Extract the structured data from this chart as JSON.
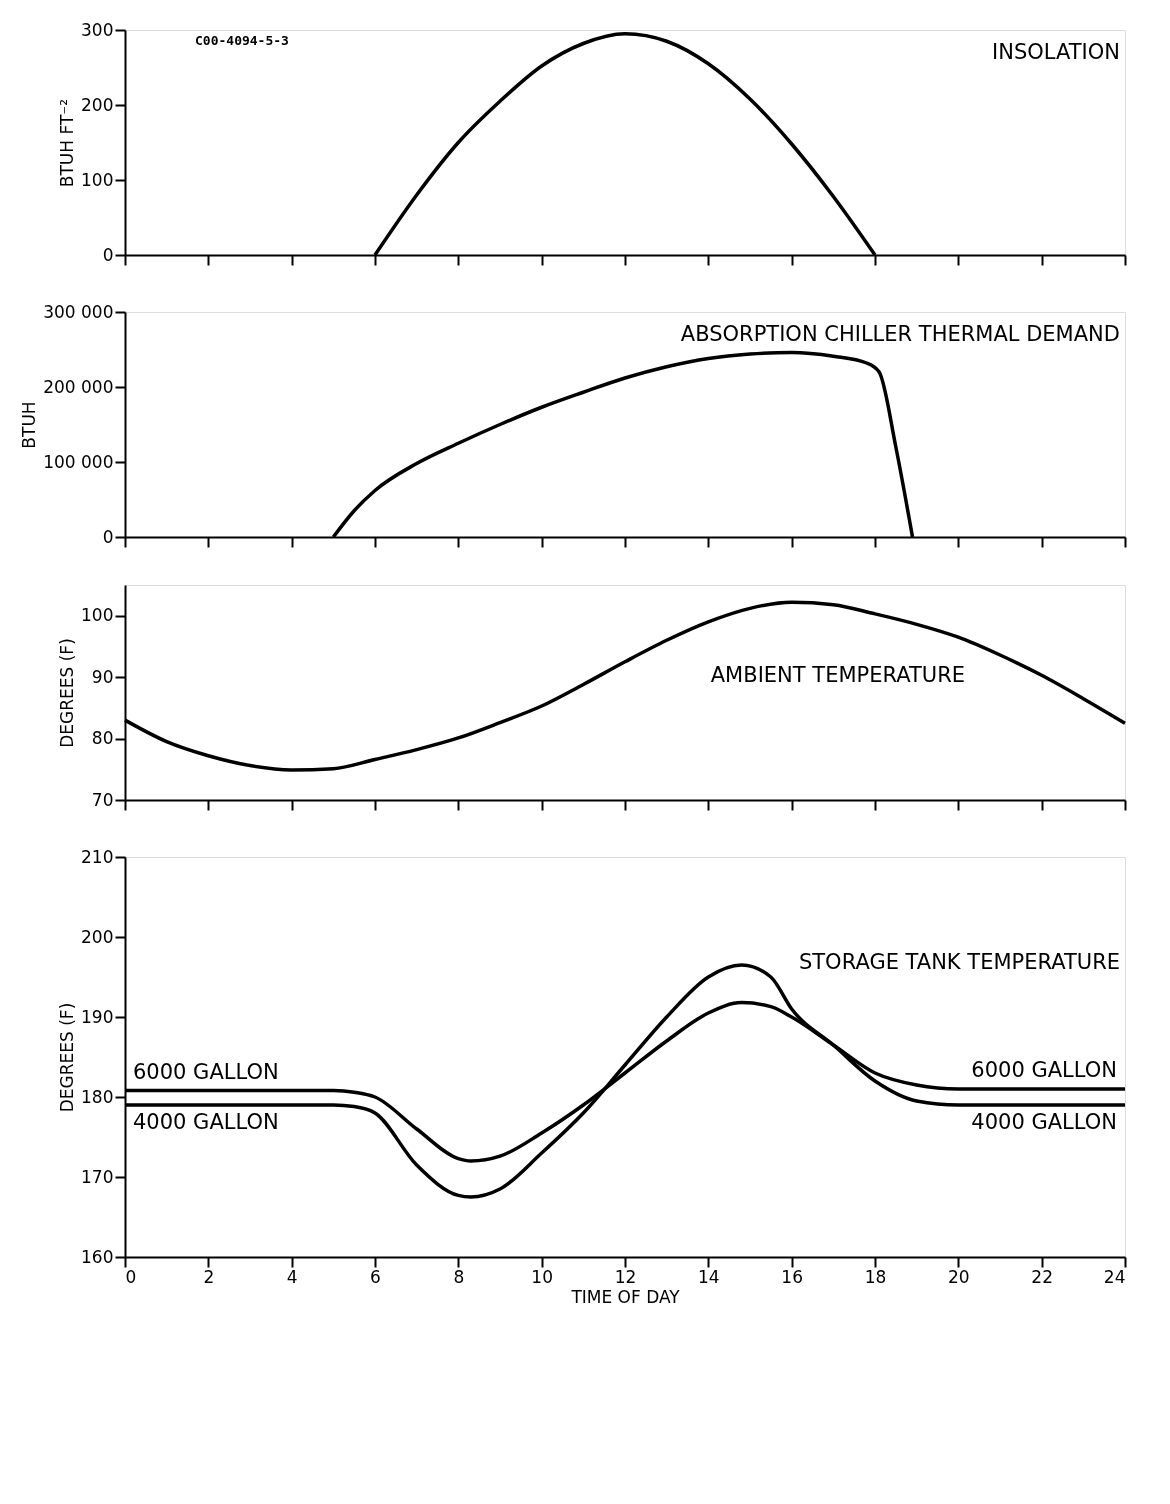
{
  "chart_data": [
    {
      "type": "line",
      "title": "INSOLATION",
      "ylabel": "BTUH FT⁻²",
      "tick_labels": "y",
      "color": "#000000",
      "xlim": [
        0,
        24
      ],
      "xticks": [
        0,
        2,
        4,
        6,
        8,
        10,
        12,
        14,
        16,
        18,
        20,
        22,
        24
      ],
      "ylim": [
        0,
        300
      ],
      "yticks": [
        0,
        100,
        200,
        300
      ],
      "x": [
        6,
        7,
        8,
        9,
        10,
        11,
        12,
        13,
        14,
        15,
        16,
        17,
        18
      ],
      "values": [
        0,
        80,
        150,
        205,
        252,
        282,
        295,
        285,
        255,
        208,
        148,
        78,
        0
      ],
      "annotations": [
        "C00-4094-5-3"
      ]
    },
    {
      "type": "line",
      "title": "ABSORPTION CHILLER THERMAL DEMAND",
      "ylabel": "BTUH",
      "tick_labels": "y",
      "color": "#000000",
      "xlim": [
        0,
        24
      ],
      "xticks": [
        0,
        2,
        4,
        6,
        8,
        10,
        12,
        14,
        16,
        18,
        20,
        22,
        24
      ],
      "ylim": [
        0,
        300000
      ],
      "yticks": [
        0,
        {
          "value": 100000,
          "label": "100 000"
        },
        {
          "value": 200000,
          "label": "200 000"
        },
        {
          "value": 300000,
          "label": "300 000"
        }
      ],
      "x": [
        5,
        5.5,
        6,
        7,
        8,
        9,
        10,
        11,
        12,
        13,
        14,
        15,
        16,
        17,
        17.8,
        18.1,
        18.5,
        18.9
      ],
      "values": [
        0,
        35000,
        62000,
        98000,
        125000,
        150000,
        173000,
        193000,
        212000,
        227000,
        238000,
        244000,
        246000,
        241000,
        232000,
        220000,
        120000,
        0
      ]
    },
    {
      "type": "line",
      "title": "AMBIENT TEMPERATURE",
      "ylabel": "DEGREES (F)",
      "tick_labels": "y",
      "color": "#000000",
      "xlim": [
        0,
        24
      ],
      "xticks": [
        0,
        2,
        4,
        6,
        8,
        10,
        12,
        14,
        16,
        18,
        20,
        22,
        24
      ],
      "ylim": [
        70,
        105
      ],
      "yticks": [
        70,
        80,
        90,
        100
      ],
      "x": [
        0,
        1,
        2,
        3,
        4,
        5,
        6,
        7,
        8,
        9,
        10,
        11,
        12,
        13,
        14,
        15,
        16,
        17,
        18,
        19,
        20,
        21,
        22,
        23,
        24
      ],
      "values": [
        83,
        79.5,
        77.2,
        75.6,
        74.9,
        75.1,
        76.6,
        78.2,
        80.1,
        82.6,
        85.3,
        88.8,
        92.5,
        96,
        99,
        101.2,
        102.2,
        101.8,
        100.3,
        98.6,
        96.5,
        93.6,
        90.3,
        86.5,
        82.5
      ]
    },
    {
      "type": "line",
      "title": "STORAGE TANK TEMPERATURE",
      "ylabel": "DEGREES (F)",
      "xlabel": "TIME OF DAY",
      "xlim": [
        0,
        24
      ],
      "xticks": [
        0,
        2,
        4,
        6,
        8,
        10,
        12,
        14,
        16,
        18,
        20,
        22,
        24
      ],
      "ylim": [
        160,
        210
      ],
      "yticks": [
        160,
        170,
        180,
        190,
        200,
        210
      ],
      "x": [
        0,
        5,
        5.5,
        6,
        7,
        8,
        8.3,
        9,
        10,
        11,
        12,
        13,
        14,
        14.8,
        15.5,
        16,
        17,
        18,
        19,
        20,
        24
      ],
      "series": [
        {
          "name": "6000 GALLON",
          "color": "#000000",
          "values": [
            180.8,
            180.8,
            180.6,
            180,
            176,
            172.3,
            172,
            172.6,
            175.5,
            179,
            183,
            187,
            190.5,
            191.8,
            191.3,
            190,
            186.5,
            183,
            181.5,
            181,
            181
          ]
        },
        {
          "name": "4000 GALLON",
          "color": "#000000",
          "values": [
            179,
            179,
            178.8,
            178,
            171.5,
            167.7,
            167.5,
            168.5,
            173,
            178,
            184,
            190,
            195,
            196.5,
            195,
            191,
            186.5,
            182,
            179.5,
            179,
            179
          ]
        }
      ]
    }
  ]
}
